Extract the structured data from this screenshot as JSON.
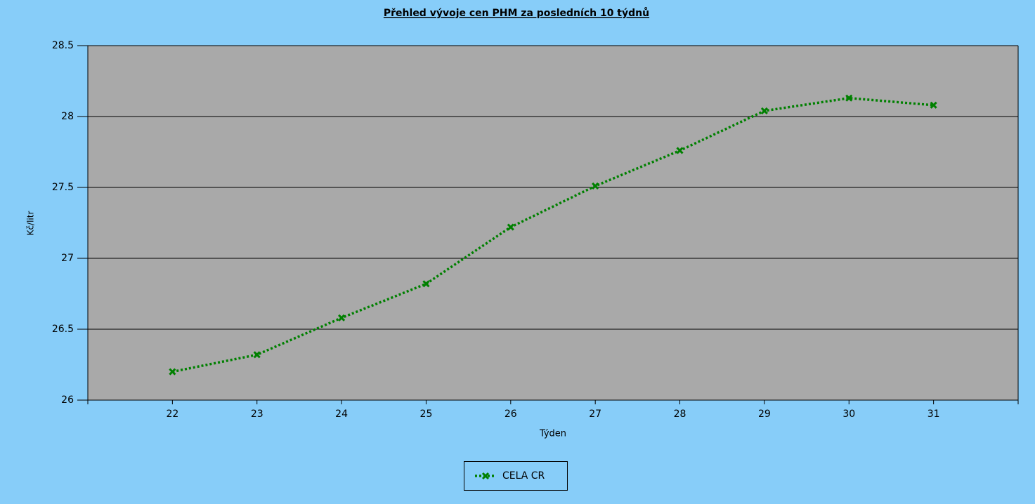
{
  "chart_data": {
    "type": "line",
    "title": "Přehled vývoje cen PHM za posledních 10 týdnů",
    "x_label": "Týden",
    "y_label": "Kč/litr",
    "x": [
      22,
      23,
      24,
      25,
      26,
      27,
      28,
      29,
      30,
      31
    ],
    "series": [
      {
        "name": "CELA CR",
        "color": "#008000",
        "values": [
          26.2,
          26.32,
          26.58,
          26.82,
          27.22,
          27.51,
          27.76,
          28.04,
          28.13,
          28.08
        ]
      }
    ],
    "xlim": [
      21,
      32
    ],
    "xticks": [
      22,
      23,
      24,
      25,
      26,
      27,
      28,
      29,
      30,
      31
    ],
    "ylim": [
      26,
      28.5
    ],
    "yticks": [
      26,
      {
        "value": 26.5,
        "label": "26.5"
      },
      27,
      {
        "value": 27.5,
        "label": "27.5"
      },
      28,
      {
        "value": 28.5,
        "label": "28.5"
      }
    ],
    "grid": true
  }
}
